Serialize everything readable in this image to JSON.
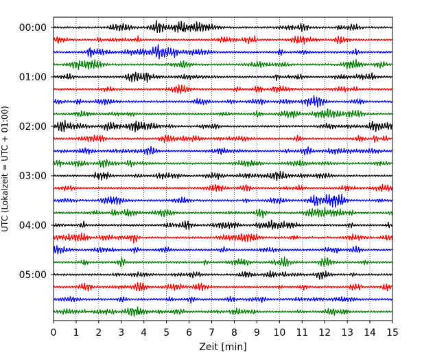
{
  "chart_data": {
    "type": "line",
    "title": "",
    "xlabel": "Zeit  [min]",
    "ylabel": "UTC (Lokalzeit = UTC + 01:00)",
    "xlim": [
      0,
      15
    ],
    "x_ticks": [
      0,
      1,
      2,
      3,
      4,
      5,
      6,
      7,
      8,
      9,
      10,
      11,
      12,
      13,
      14,
      15
    ],
    "x_tick_labels": [
      "0",
      "1",
      "2",
      "3",
      "4",
      "5",
      "6",
      "7",
      "8",
      "9",
      "10",
      "11",
      "12",
      "13",
      "14",
      "15"
    ],
    "y_tick_labels": [
      "00:00",
      "01:00",
      "02:00",
      "03:00",
      "04:00",
      "05:00"
    ],
    "y_tick_rows": [
      0,
      4,
      8,
      12,
      16,
      20
    ],
    "rows_per_hour": 4,
    "row_count": 24,
    "minutes_per_row": 15,
    "vertical_grid": "dotted",
    "trace_colors": [
      "#000000",
      "#ff0000",
      "#0000ff",
      "#008000"
    ],
    "trace_type": "seismogram"
  }
}
